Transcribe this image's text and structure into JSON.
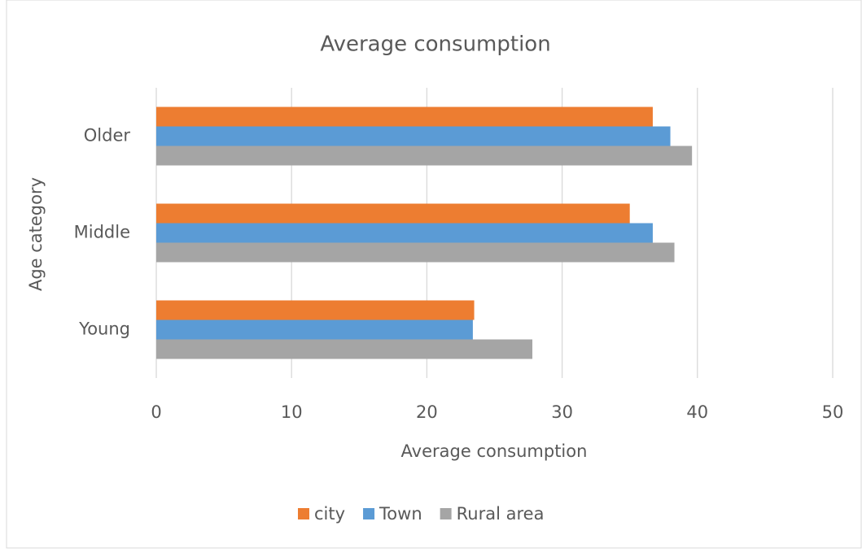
{
  "chart_data": {
    "type": "hbar",
    "title": "Average consumption",
    "x_label": "Average consumption",
    "y_label": "Age category",
    "categories": [
      "Young",
      "Middle",
      "Older"
    ],
    "series": [
      {
        "name": "city",
        "color": "#ed7d31",
        "values": [
          23.5,
          35.0,
          36.7
        ]
      },
      {
        "name": "Town",
        "color": "#5b9bd5",
        "values": [
          23.4,
          36.7,
          38.0
        ]
      },
      {
        "name": "Rural area",
        "color": "#a5a5a5",
        "values": [
          27.8,
          38.3,
          39.6
        ]
      }
    ],
    "xlim": [
      0,
      50
    ],
    "xticks": [
      0,
      10,
      20,
      30,
      40,
      50
    ],
    "grid": true,
    "legend": "bottom"
  }
}
